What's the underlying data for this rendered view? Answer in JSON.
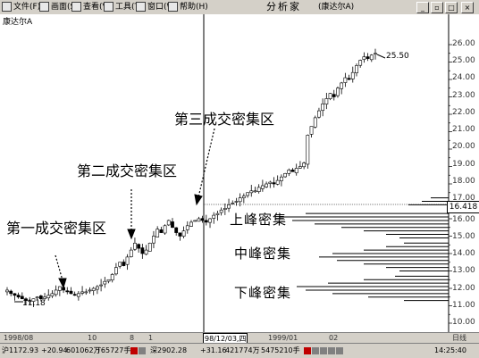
{
  "menubar": {
    "items": [
      {
        "label": "文件(F)",
        "icon": "file-icon"
      },
      {
        "label": "画面(S)",
        "icon": "screen-icon"
      },
      {
        "label": "查看(V)",
        "icon": "view-icon"
      },
      {
        "label": "工具(T)",
        "icon": "tools-icon"
      },
      {
        "label": "窗口(W)",
        "icon": "window-icon"
      },
      {
        "label": "帮助(H)",
        "icon": "help-icon"
      }
    ],
    "app_title": "分析家",
    "stock_title": "(康达尔A)"
  },
  "chart": {
    "stock_label": "康达尔A",
    "low_label": "11.18",
    "high_label": "25.50",
    "crosshair_price": "16.418",
    "annotations": {
      "first": "第一成交密集区",
      "second": "第二成交密集区",
      "third": "第三成交密集区"
    },
    "peaks": {
      "upper": "上峰密集",
      "middle": "中峰密集",
      "lower": "下峰密集"
    },
    "price_ticks": [
      "26.00",
      "25.00",
      "24.00",
      "23.00",
      "22.00",
      "21.00",
      "20.00",
      "19.00",
      "18.00",
      "17.00",
      "16.00",
      "15.00",
      "14.00",
      "13.00",
      "12.00",
      "11.00",
      "10.00"
    ]
  },
  "chart_data": {
    "type": "candlestick",
    "ylim": [
      9.5,
      26.8
    ],
    "closes": [
      11.9,
      11.7,
      11.6,
      11.5,
      11.4,
      11.3,
      11.3,
      11.4,
      11.5,
      11.4,
      11.5,
      11.6,
      11.7,
      11.9,
      12.1,
      11.9,
      11.8,
      11.7,
      11.6,
      11.7,
      11.8,
      11.8,
      11.9,
      12.0,
      12.1,
      12.2,
      12.4,
      12.5,
      12.8,
      13.2,
      13.5,
      13.3,
      13.8,
      14.2,
      14.6,
      14.3,
      14.0,
      14.2,
      14.6,
      15.0,
      15.4,
      15.2,
      15.6,
      15.9,
      15.5,
      15.2,
      15.0,
      15.3,
      15.6,
      15.8,
      15.9,
      16.0,
      15.9,
      15.8,
      16.0,
      16.2,
      16.3,
      16.5,
      16.6,
      16.8,
      16.9,
      17.0,
      17.2,
      17.3,
      17.5,
      17.6,
      17.6,
      17.8,
      17.9,
      18.0,
      18.1,
      18.0,
      18.2,
      18.4,
      18.6,
      18.8,
      18.7,
      18.9,
      19.0,
      19.2,
      20.8,
      21.3,
      21.8,
      22.2,
      22.6,
      22.9,
      23.2,
      23.0,
      23.5,
      23.8,
      24.1,
      24.0,
      24.4,
      24.8,
      25.1,
      25.3,
      25.2,
      25.4,
      25.5
    ],
    "volume_profile": [
      {
        "price": 16.3,
        "length": 160
      },
      {
        "price": 16.1,
        "length": 190
      },
      {
        "price": 15.9,
        "length": 175
      },
      {
        "price": 15.7,
        "length": 150
      },
      {
        "price": 15.5,
        "length": 120
      },
      {
        "price": 15.3,
        "length": 95
      },
      {
        "price": 15.1,
        "length": 70
      },
      {
        "price": 14.9,
        "length": 55
      },
      {
        "price": 14.6,
        "length": 50
      },
      {
        "price": 14.4,
        "length": 70
      },
      {
        "price": 14.2,
        "length": 95
      },
      {
        "price": 14.0,
        "length": 130
      },
      {
        "price": 13.8,
        "length": 145
      },
      {
        "price": 13.6,
        "length": 125
      },
      {
        "price": 13.4,
        "length": 95
      },
      {
        "price": 13.2,
        "length": 70
      },
      {
        "price": 13.0,
        "length": 55
      },
      {
        "price": 12.7,
        "length": 60
      },
      {
        "price": 12.5,
        "length": 95
      },
      {
        "price": 12.3,
        "length": 135
      },
      {
        "price": 12.1,
        "length": 170
      },
      {
        "price": 11.9,
        "length": 160
      },
      {
        "price": 11.7,
        "length": 130
      },
      {
        "price": 11.5,
        "length": 90
      },
      {
        "price": 11.3,
        "length": 50
      },
      {
        "price": 17.2,
        "length": 20
      },
      {
        "price": 17.0,
        "length": 30
      },
      {
        "price": 16.8,
        "length": 45
      }
    ]
  },
  "bottom_scale": {
    "labels": [
      "1998/08",
      "10",
      "8",
      "1",
      "98/12/03,四",
      "1999/01",
      "02",
      "日线"
    ]
  },
  "status_bar": {
    "sh_index": "沪1172.93",
    "sh_change": "+20.94",
    "sh_amount": "601062万",
    "sh_volume": "T65727手",
    "sz_index": "深2902.28",
    "sz_change": "+31.16",
    "sz_amount": "421774万",
    "sz_volume": "5475210手",
    "time": "14:25:40"
  }
}
